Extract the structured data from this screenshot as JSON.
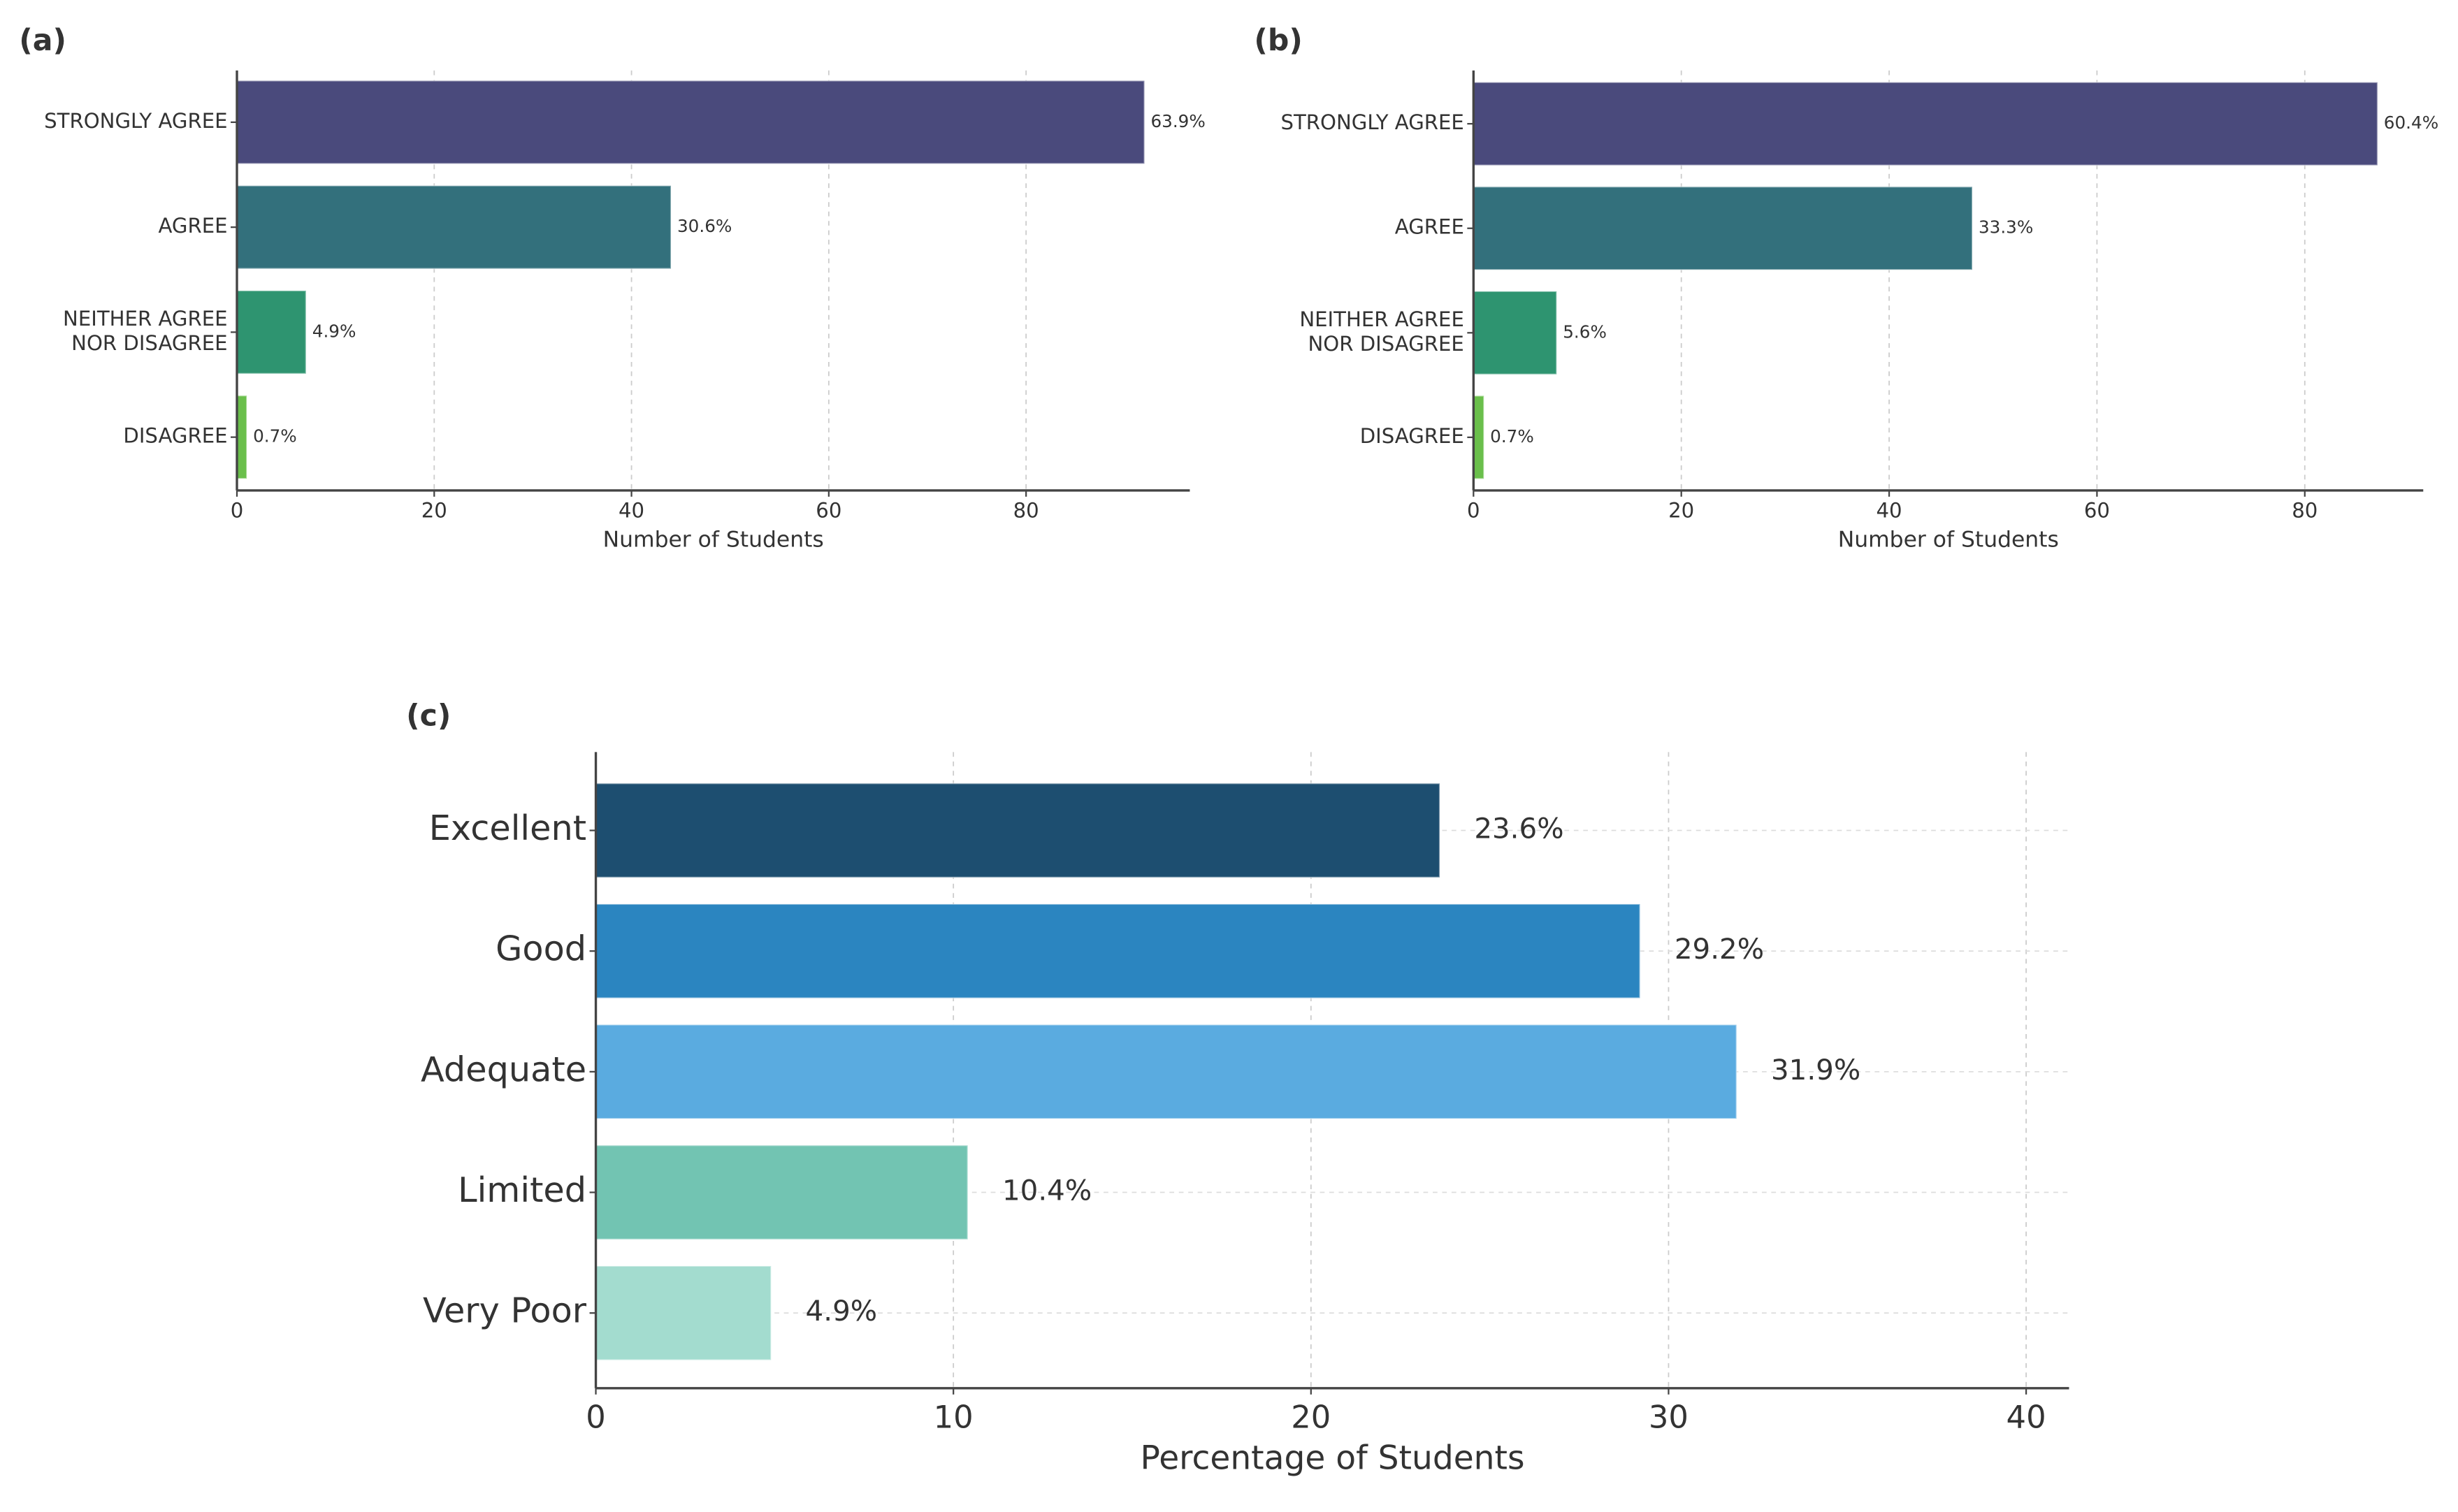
{
  "chart_data": [
    {
      "type": "barh",
      "panel": "(a)",
      "xlabel": "Number of Students",
      "categories": [
        "STRONGLY AGREE",
        "AGREE",
        "NEITHER AGREE\nNOR DISAGREE",
        "DISAGREE"
      ],
      "values": [
        92,
        44,
        7,
        1
      ],
      "value_labels": [
        "63.9%",
        "30.6%",
        "4.9%",
        "0.7%"
      ],
      "colors": [
        "#4a4a7c",
        "#33707c",
        "#2e9470",
        "#6abf4b"
      ],
      "xlim": [
        0,
        96.6
      ],
      "xticks": [
        0,
        20,
        40,
        60,
        80
      ],
      "grid": "x"
    },
    {
      "type": "barh",
      "panel": "(b)",
      "xlabel": "Number of Students",
      "categories": [
        "STRONGLY AGREE",
        "AGREE",
        "NEITHER AGREE\nNOR DISAGREE",
        "DISAGREE"
      ],
      "values": [
        87,
        48,
        8,
        1
      ],
      "value_labels": [
        "60.4%",
        "33.3%",
        "5.6%",
        "0.7%"
      ],
      "colors": [
        "#4a4a7c",
        "#33707c",
        "#2e9470",
        "#6abf4b"
      ],
      "xlim": [
        0,
        91.4
      ],
      "xticks": [
        0,
        20,
        40,
        60,
        80
      ],
      "grid": "x"
    },
    {
      "type": "barh",
      "panel": "(c)",
      "xlabel": "Percentage of Students",
      "categories": [
        "Excellent",
        "Good",
        "Adequate",
        "Limited",
        "Very Poor"
      ],
      "values": [
        23.6,
        29.2,
        31.9,
        10.4,
        4.9
      ],
      "value_labels": [
        "23.6%",
        "29.2%",
        "31.9%",
        "10.4%",
        "4.9%"
      ],
      "colors": [
        "#1d4e70",
        "#2b85c0",
        "#5aabe0",
        "#72c4b2",
        "#a3dccf"
      ],
      "xlim": [
        0,
        41.2
      ],
      "xticks": [
        0,
        10,
        20,
        30,
        40
      ],
      "grid": "both"
    }
  ]
}
